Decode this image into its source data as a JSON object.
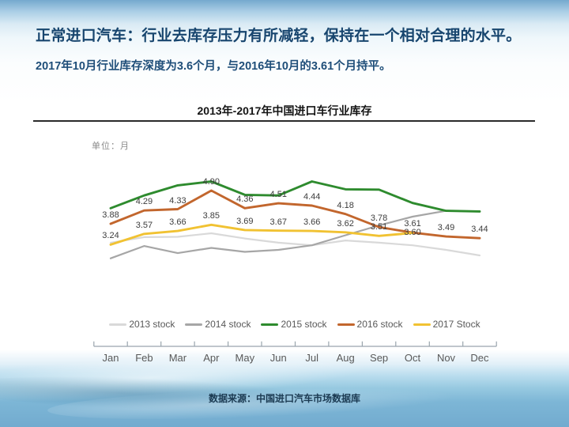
{
  "slide": {
    "title": "正常进口汽车：行业去库存压力有所减轻，保持在一个相对合理的水平。",
    "subtitle": "2017年10月行业库存深度为3.6个月，与2016年10月的3.61个月持平。",
    "source": "数据来源：中国进口汽车市场数据库"
  },
  "chart_data": {
    "type": "line",
    "title": "2013年-2017年中国进口车行业库存",
    "unit_label": "单位：月",
    "ylabel": "月",
    "categories": [
      "Jan",
      "Feb",
      "Mar",
      "Apr",
      "May",
      "Jun",
      "Jul",
      "Aug",
      "Sep",
      "Oct",
      "Nov",
      "Dec"
    ],
    "series": [
      {
        "name": "2013 stock",
        "color": "#d9d9d9",
        "labeled": false,
        "values": [
          3.3,
          3.47,
          3.48,
          3.59,
          3.43,
          3.3,
          3.22,
          3.37,
          3.3,
          3.22,
          3.08,
          2.91
        ]
      },
      {
        "name": "2014 stock",
        "color": "#a6a6a6",
        "labeled": false,
        "values": [
          2.82,
          3.2,
          2.98,
          3.14,
          3.02,
          3.08,
          3.22,
          3.53,
          3.83,
          4.1,
          4.28,
          4.26
        ]
      },
      {
        "name": "2015 stock",
        "color": "#2e8b2e",
        "labeled": false,
        "values": [
          4.36,
          4.75,
          5.06,
          5.18,
          4.77,
          4.75,
          5.18,
          4.94,
          4.93,
          4.52,
          4.28,
          4.26
        ]
      },
      {
        "name": "2016 stock",
        "color": "#c2662d",
        "labeled": true,
        "values": [
          3.88,
          4.29,
          4.33,
          4.9,
          4.36,
          4.51,
          4.44,
          4.18,
          3.78,
          3.61,
          3.49,
          3.44
        ]
      },
      {
        "name": "2017 Stock",
        "color": "#f1c232",
        "labeled": true,
        "values": [
          3.24,
          3.57,
          3.66,
          3.85,
          3.69,
          3.67,
          3.66,
          3.62,
          3.51,
          3.6,
          null,
          null
        ]
      }
    ],
    "ylim": [
      2.5,
      5.5
    ],
    "grid": false,
    "legend_position": "bottom"
  }
}
